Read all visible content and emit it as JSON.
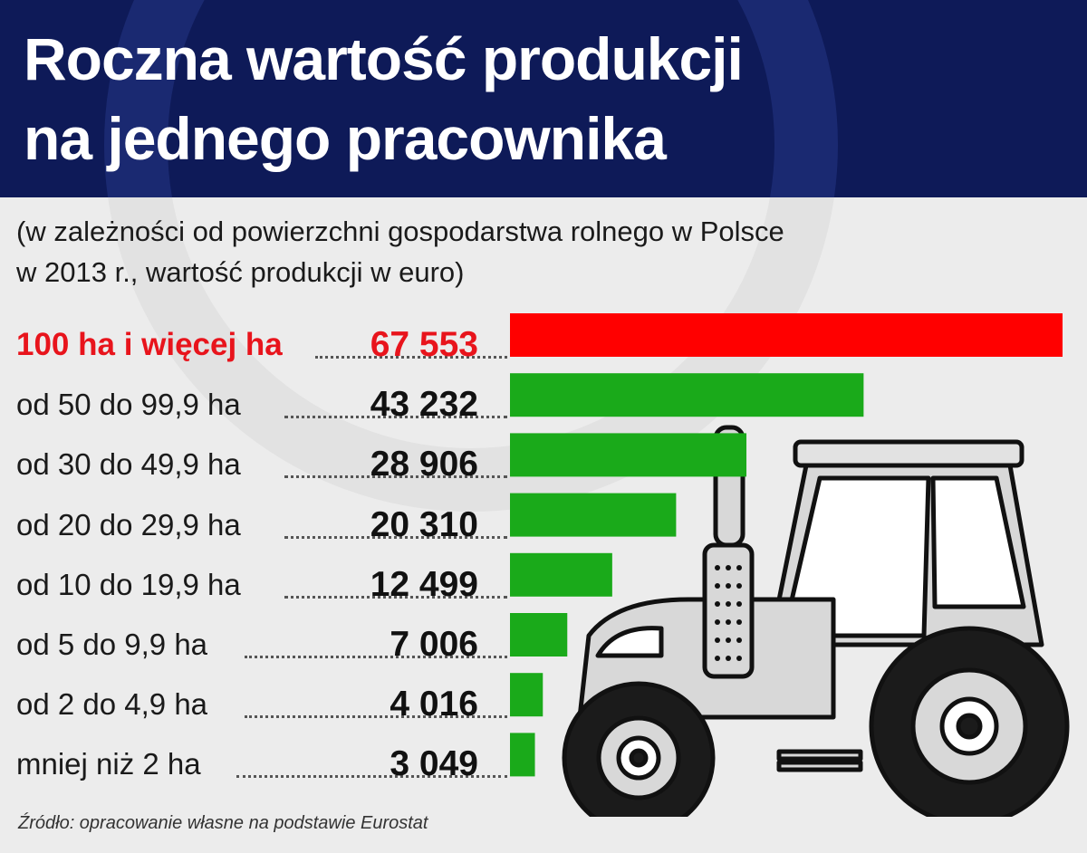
{
  "chart_data": {
    "type": "bar",
    "title": "Roczna wartość produkcji na jednego pracownika",
    "title_lines": [
      "Roczna wartość produkcji",
      "na jednego pracownika"
    ],
    "subtitle_lines": [
      "(w zależności od powierzchni gospodarstwa rolnego w Polsce",
      "w 2013 r., wartość produkcji w euro)"
    ],
    "orientation": "horizontal",
    "categories": [
      "100 ha i więcej ha",
      "od 50 do 99,9 ha",
      "od 30 do 49,9 ha",
      "od 20 do 29,9 ha",
      "od 10 do 19,9 ha",
      "od 5 do 9,9 ha",
      "od 2 do 4,9 ha",
      "mniej niż 2 ha"
    ],
    "values": [
      67553,
      43232,
      28906,
      20310,
      12499,
      7006,
      4016,
      3049
    ],
    "value_labels": [
      "67 553",
      "43 232",
      "28 906",
      "20 310",
      "12 499",
      "7 006",
      "4 016",
      "3 049"
    ],
    "highlight_index": 0,
    "colors": {
      "highlight": "#ff0000",
      "default": "#1aaa1a",
      "header_bg": "#0e1a58"
    },
    "xlim": [
      0,
      67553
    ],
    "grid": false,
    "legend": "none",
    "source": "Źródło: opracowanie własne na podstawie Eurostat"
  },
  "icons": {
    "illustration": "tractor-icon"
  }
}
